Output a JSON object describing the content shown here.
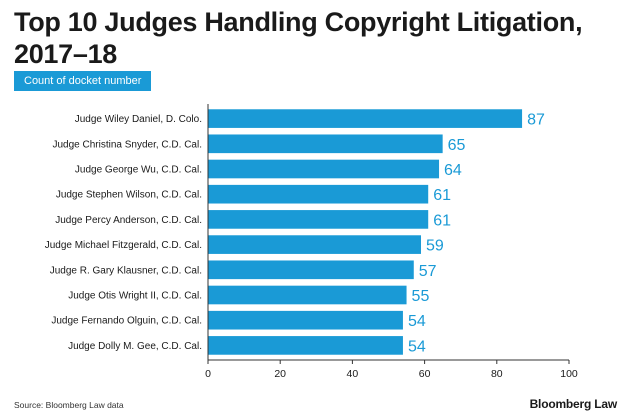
{
  "title": "Top 10 Judges Handling Copyright Litigation, 2017–18",
  "subtitle": "Count of docket number",
  "source": "Source: Bloomberg Law data",
  "brand": "Bloomberg Law",
  "colors": {
    "bar": "#1a9ad6",
    "label": "#1a9ad6",
    "badge": "#1a9ad6"
  },
  "chart_data": {
    "type": "bar",
    "orientation": "horizontal",
    "title": "Top 10 Judges Handling Copyright Litigation, 2017–18",
    "xlabel": "Count of docket number",
    "ylabel": "",
    "xlim": [
      0,
      100
    ],
    "xticks": [
      0,
      20,
      40,
      60,
      80,
      100
    ],
    "grid": false,
    "categories": [
      "Judge Wiley Daniel, D. Colo.",
      "Judge Christina Snyder, C.D. Cal.",
      "Judge George Wu, C.D. Cal.",
      "Judge Stephen Wilson, C.D. Cal.",
      "Judge Percy Anderson, C.D. Cal.",
      "Judge Michael Fitzgerald, C.D. Cal.",
      "Judge R. Gary Klausner, C.D. Cal.",
      "Judge Otis Wright II, C.D. Cal.",
      "Judge Fernando Olguin, C.D. Cal.",
      "Judge Dolly M. Gee, C.D. Cal."
    ],
    "values": [
      87,
      65,
      64,
      61,
      61,
      59,
      57,
      55,
      54,
      54
    ]
  }
}
